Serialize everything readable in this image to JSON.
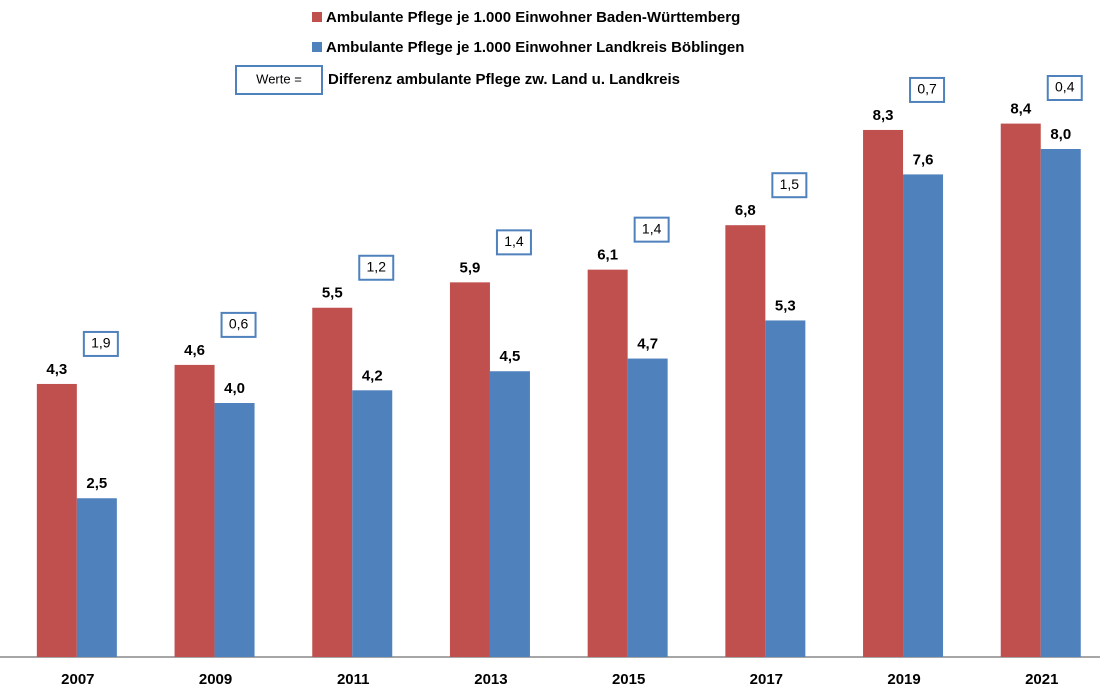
{
  "chart_data": {
    "type": "bar",
    "categories": [
      "2007",
      "2009",
      "2011",
      "2013",
      "2015",
      "2017",
      "2019",
      "2021"
    ],
    "series": [
      {
        "name": "Ambulante Pflege je 1.000 Einwohner Baden-Württemberg",
        "color": "#c0504d",
        "values": [
          4.3,
          4.6,
          5.5,
          5.9,
          6.1,
          6.8,
          8.3,
          8.4
        ],
        "value_labels": [
          "4,3",
          "4,6",
          "5,5",
          "5,9",
          "6,1",
          "6,8",
          "8,3",
          "8,4"
        ]
      },
      {
        "name": "Ambulante Pflege je 1.000 Einwohner Landkreis Böblingen",
        "color": "#4f81bd",
        "values": [
          2.5,
          4.0,
          4.2,
          4.5,
          4.7,
          5.3,
          7.6,
          8.0
        ],
        "value_labels": [
          "2,5",
          "4,0",
          "4,2",
          "4,5",
          "4,7",
          "5,3",
          "7,6",
          "8,0"
        ]
      }
    ],
    "differences": {
      "name": "Differenz ambulante Pflege zw. Land u. Landkreis",
      "key_label": "Werte =",
      "values": [
        1.9,
        0.6,
        1.2,
        1.4,
        1.4,
        1.5,
        0.7,
        0.4
      ],
      "value_labels": [
        "1,9",
        "0,6",
        "1,2",
        "1,4",
        "1,4",
        "1,5",
        "0,7",
        "0,4"
      ]
    },
    "ylim": [
      0,
      9
    ]
  }
}
